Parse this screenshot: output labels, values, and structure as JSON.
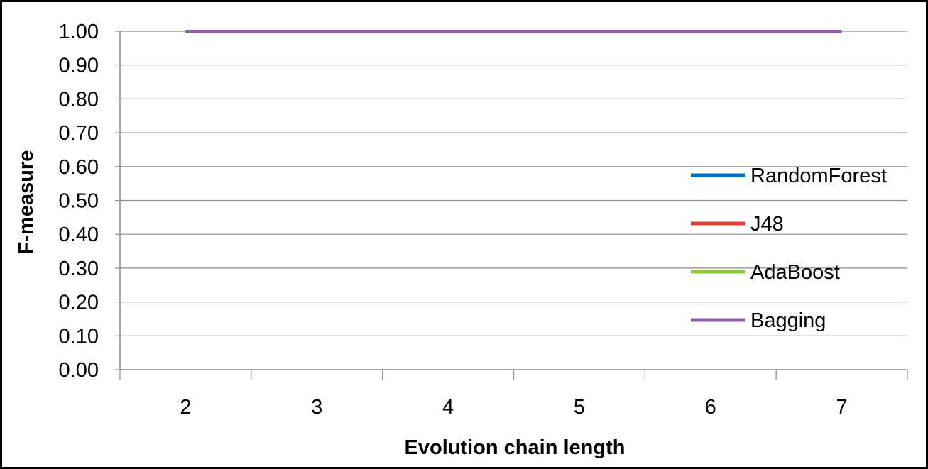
{
  "chart_data": {
    "type": "line",
    "title": "",
    "xlabel": "Evolution chain length",
    "ylabel": "F-measure",
    "categories": [
      "2",
      "3",
      "4",
      "5",
      "6",
      "7"
    ],
    "ylim": [
      0,
      1
    ],
    "yticks": [
      "0.00",
      "0.10",
      "0.20",
      "0.30",
      "0.40",
      "0.50",
      "0.60",
      "0.70",
      "0.80",
      "0.90",
      "1.00"
    ],
    "grid": "horizontal",
    "legend_position": "right",
    "series": [
      {
        "name": "RandomForest",
        "color": "#0070C0",
        "values": [
          1.0,
          1.0,
          1.0,
          1.0,
          1.0,
          1.0
        ]
      },
      {
        "name": "J48",
        "color": "#E0403A",
        "values": [
          1.0,
          1.0,
          1.0,
          1.0,
          1.0,
          1.0
        ]
      },
      {
        "name": "AdaBoost",
        "color": "#8DC63F",
        "values": [
          1.0,
          1.0,
          1.0,
          1.0,
          1.0,
          1.0
        ]
      },
      {
        "name": "Bagging",
        "color": "#8E5EA2",
        "values": [
          1.0,
          1.0,
          1.0,
          1.0,
          1.0,
          1.0
        ]
      }
    ]
  }
}
